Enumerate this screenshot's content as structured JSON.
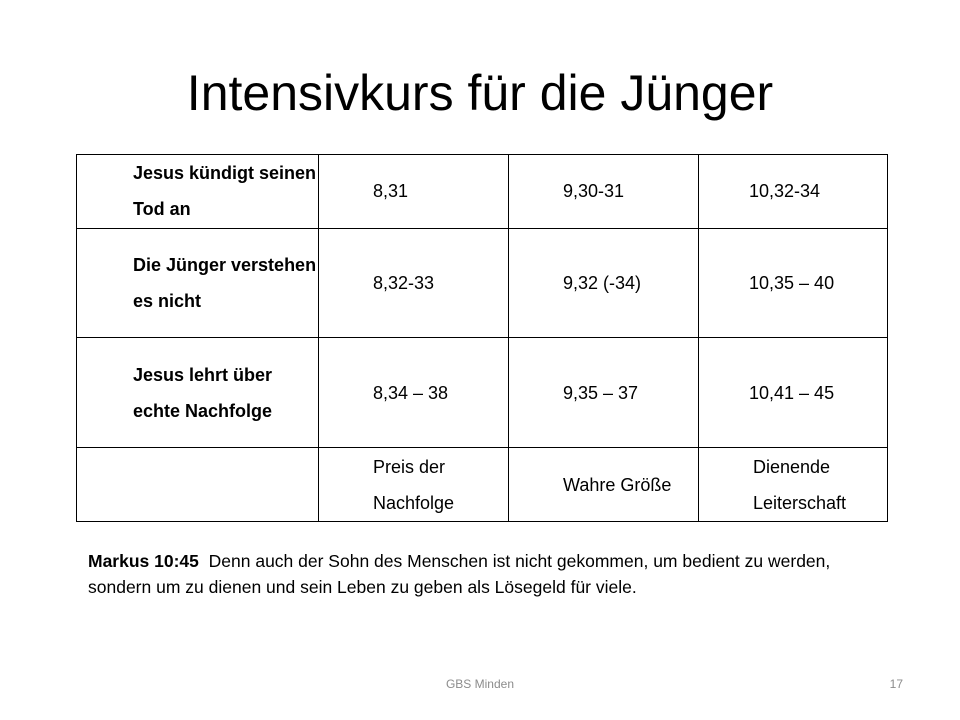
{
  "slide": {
    "title": "Intensivkurs für die Jünger"
  },
  "table": {
    "rows": [
      {
        "header": "Jesus kündigt seinen Tod an",
        "cells": [
          "8,31",
          "9,30-31",
          "10,32-34"
        ]
      },
      {
        "header": "Die Jünger verstehen es nicht",
        "cells": [
          "8,32-33",
          "9,32 (-34)",
          "10,35 – 40"
        ]
      },
      {
        "header": "Jesus lehrt über echte Nachfolge",
        "cells": [
          "8,34 – 38",
          "9,35 – 37",
          "10,41 – 45"
        ]
      },
      {
        "header": "",
        "cells": [
          "Preis der Nachfolge",
          "Wahre Größe",
          "Dienende Leiterschaft"
        ]
      }
    ]
  },
  "verse": {
    "reference": "Markus 10:45",
    "text": "Denn auch der Sohn des Menschen ist nicht gekommen, um bedient zu werden, sondern um zu dienen und sein Leben zu geben als Lösegeld für viele."
  },
  "footer": {
    "center_text": "GBS Minden",
    "page_number": "17"
  }
}
